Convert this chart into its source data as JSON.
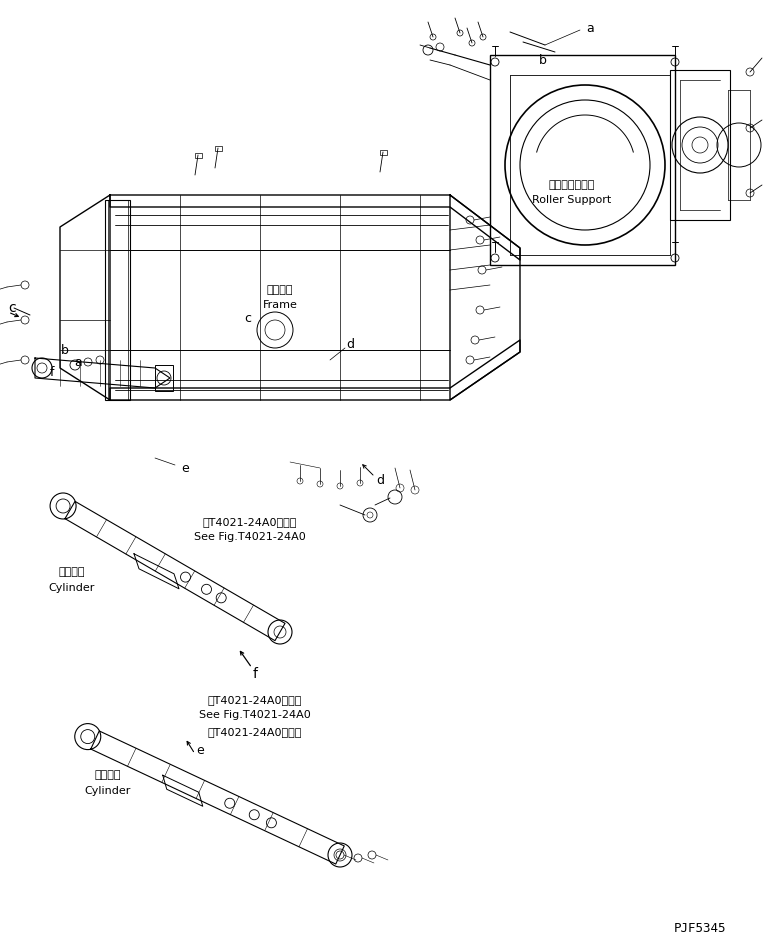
{
  "background_color": "#ffffff",
  "line_color": "#000000",
  "figure_width": 7.68,
  "figure_height": 9.42,
  "dpi": 100,
  "part_code": "PJF5345",
  "roller_support_jp": "ローラサポート",
  "roller_support_en": "Roller Support",
  "frame_jp": "フレーム",
  "frame_en": "Frame",
  "cylinder_jp": "シリンダ",
  "cylinder_en": "Cylinder",
  "see_fig_jp": "第T4021-24A0図参照",
  "see_fig_en": "See Fig.T4021-24A0"
}
